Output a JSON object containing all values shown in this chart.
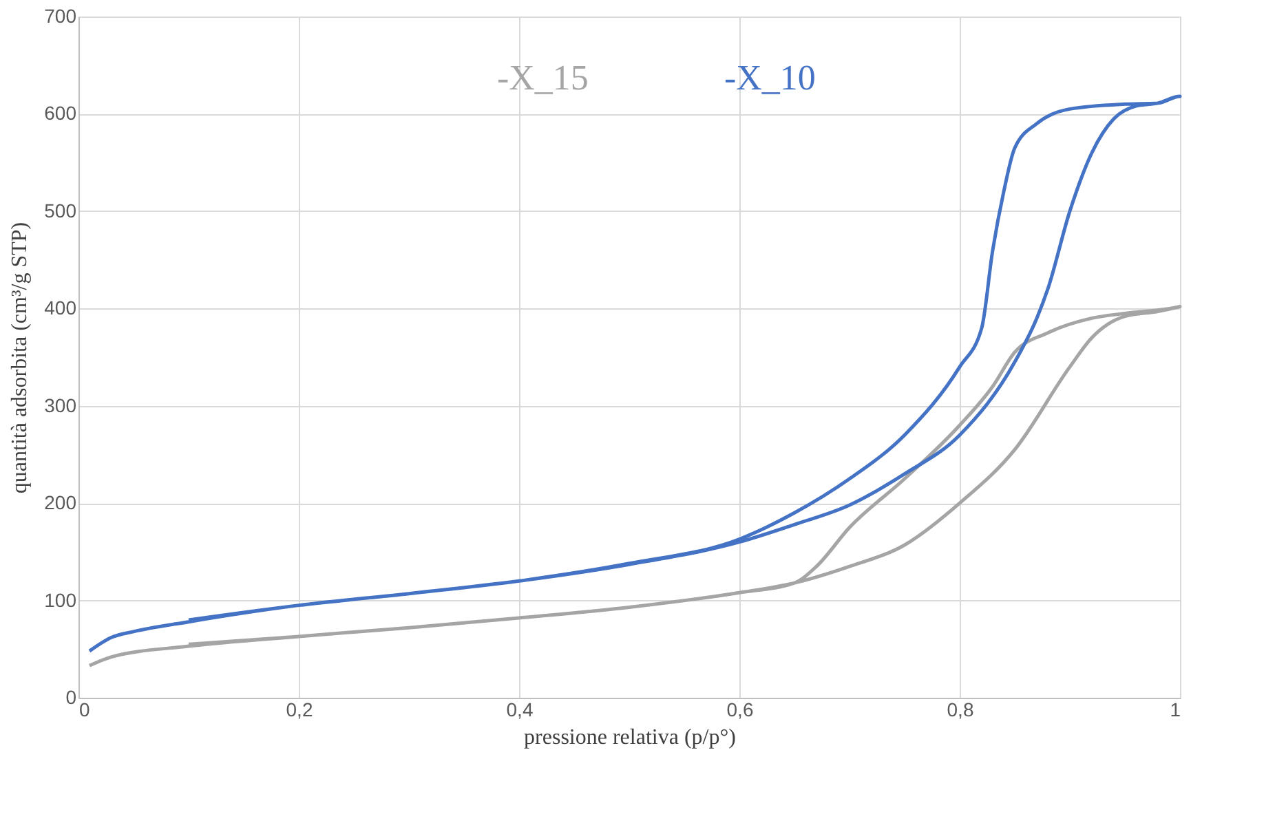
{
  "chart_data": {
    "type": "line",
    "xlabel": "pressione relativa (p/p°)",
    "ylabel": "quantità adsorbita (cm³/g STP)",
    "xlim": [
      0,
      1
    ],
    "ylim": [
      0,
      700
    ],
    "xticks": [
      0,
      {
        "value": 0.2,
        "label": "0,2"
      },
      {
        "value": 0.4,
        "label": "0,4"
      },
      {
        "value": 0.6,
        "label": "0,6"
      },
      {
        "value": 0.8,
        "label": "0,8"
      },
      1
    ],
    "yticks": [
      0,
      100,
      200,
      300,
      400,
      500,
      600,
      700
    ],
    "grid": true,
    "legend": "top",
    "marker": "none",
    "line_style": "solid",
    "series": [
      {
        "name": "-X_15",
        "color": "#a5a5a5",
        "x": [
          0.01,
          0.03,
          0.1,
          0.2,
          0.3,
          0.4,
          0.5,
          0.6,
          0.65,
          0.7,
          0.75,
          0.8,
          0.85,
          0.9,
          0.92,
          0.95,
          0.98,
          1,
          0.95,
          0.92,
          0.88,
          0.85,
          0.83,
          0.8,
          0.75,
          0.7,
          0.67,
          0.65,
          0.6,
          0.5,
          0.4,
          0.3,
          0.2,
          0.1
        ],
        "values": [
          33,
          42,
          53,
          63,
          72,
          82,
          93,
          108,
          118,
          135,
          157,
          200,
          255,
          340,
          370,
          392,
          397,
          402,
          395,
          390,
          375,
          355,
          320,
          280,
          225,
          175,
          135,
          118,
          108,
          93,
          82,
          72,
          63,
          55
        ]
      },
      {
        "name": "-X_10",
        "color": "#4472c4",
        "x": [
          0.01,
          0.03,
          0.05,
          0.1,
          0.2,
          0.3,
          0.4,
          0.5,
          0.6,
          0.65,
          0.7,
          0.75,
          0.8,
          0.85,
          0.87,
          0.88,
          0.9,
          0.92,
          0.94,
          0.96,
          0.98,
          1,
          0.98,
          0.95,
          0.9,
          0.87,
          0.85,
          0.84,
          0.83,
          0.82,
          0.8,
          0.75,
          0.7,
          0.65,
          0.6,
          0.5,
          0.4,
          0.3,
          0.2,
          0.1
        ],
        "values": [
          48,
          62,
          68,
          78,
          95,
          107,
          120,
          137,
          160,
          178,
          198,
          230,
          270,
          345,
          390,
          420,
          500,
          560,
          595,
          608,
          611,
          618,
          611,
          610,
          605,
          590,
          565,
          520,
          460,
          380,
          340,
          270,
          225,
          190,
          163,
          138,
          120,
          107,
          95,
          80
        ]
      }
    ]
  }
}
